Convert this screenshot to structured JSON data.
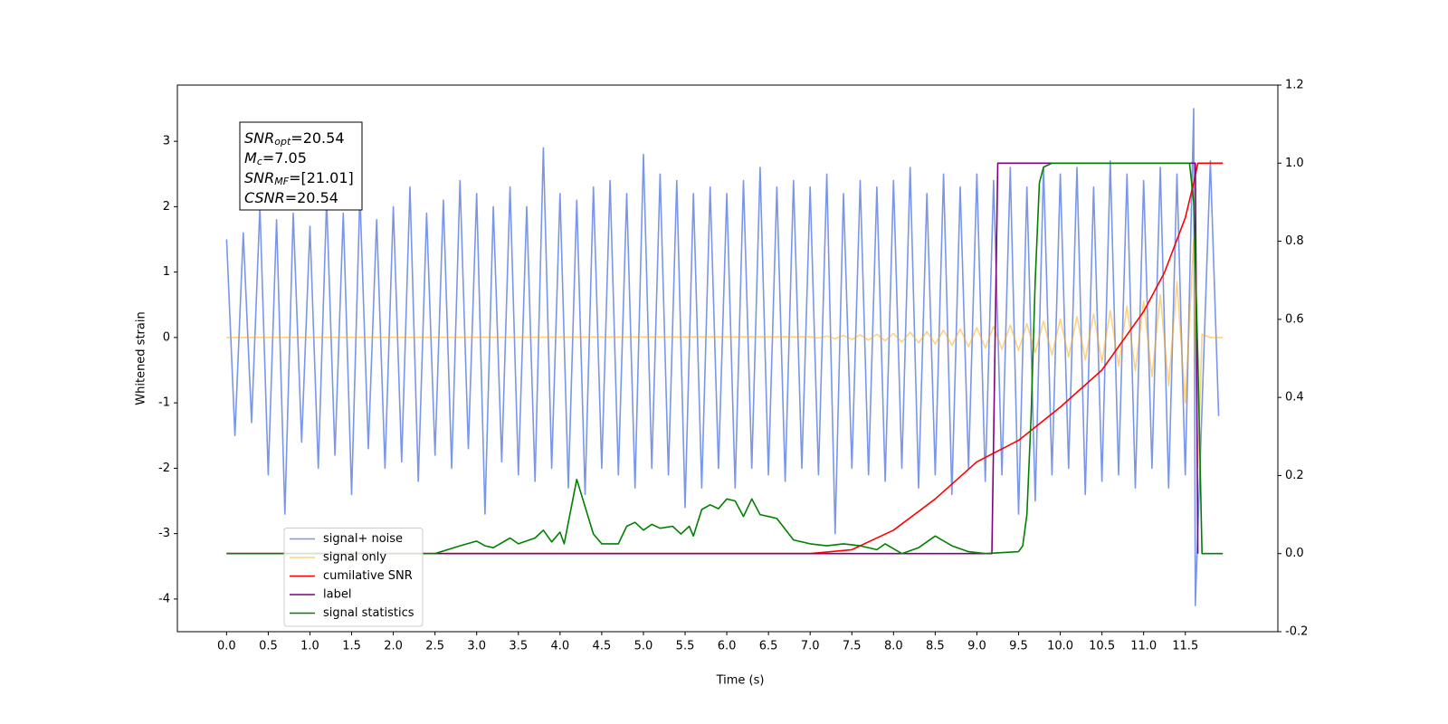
{
  "chart_data": {
    "type": "line",
    "xlabel": "Time (s)",
    "ylabel": "Whitened strain",
    "xlim": [
      -0.59,
      12.61
    ],
    "ylim": [
      -4.5,
      3.86
    ],
    "y2lim": [
      -0.2,
      1.2
    ],
    "xticks": [
      {
        "value": 0,
        "label": "0.0"
      },
      {
        "value": 0.5,
        "label": "0.5"
      },
      {
        "value": 1,
        "label": "1.0"
      },
      {
        "value": 1.5,
        "label": "1.5"
      },
      {
        "value": 2,
        "label": "2.0"
      },
      {
        "value": 2.5,
        "label": "2.5"
      },
      {
        "value": 3,
        "label": "3.0"
      },
      {
        "value": 3.5,
        "label": "3.5"
      },
      {
        "value": 4,
        "label": "4.0"
      },
      {
        "value": 4.5,
        "label": "4.5"
      },
      {
        "value": 5,
        "label": "5.0"
      },
      {
        "value": 5.5,
        "label": "5.5"
      },
      {
        "value": 6,
        "label": "6.0"
      },
      {
        "value": 6.5,
        "label": "6.5"
      },
      {
        "value": 7,
        "label": "7.0"
      },
      {
        "value": 7.5,
        "label": "7.5"
      },
      {
        "value": 8,
        "label": "8.0"
      },
      {
        "value": 8.5,
        "label": "8.5"
      },
      {
        "value": 9,
        "label": "9.0"
      },
      {
        "value": 9.5,
        "label": "9.5"
      },
      {
        "value": 10,
        "label": "10.0"
      },
      {
        "value": 10.5,
        "label": "10.5"
      },
      {
        "value": 11,
        "label": "11.0"
      },
      {
        "value": 11.5,
        "label": "11.5"
      }
    ],
    "yticks": [
      -4,
      -3,
      -2,
      -1,
      0,
      1,
      2,
      3
    ],
    "y2ticks": [
      -0.2,
      {
        "value": 0,
        "label": "0.0"
      },
      0.2,
      0.4,
      0.6,
      0.8,
      {
        "value": 1,
        "label": "1.0"
      },
      1.2
    ],
    "legend": "lower left",
    "annotation": [
      {
        "main": "SNR",
        "sub": "opt",
        "rest": "=20.54"
      },
      {
        "main": "M",
        "sub": "c",
        "rest": "=7.05"
      },
      {
        "main": "SNR",
        "sub": "MF",
        "rest": "=[21.01]"
      },
      {
        "main": "CSNR",
        "sub": "",
        "rest": "=20.54"
      }
    ],
    "series": [
      {
        "name": "signal+ noise",
        "color": "#4169e1",
        "alpha": 0.7,
        "axis": "y",
        "x": [
          0,
          0.1,
          0.2,
          0.3,
          0.4,
          0.5,
          0.6,
          0.7,
          0.8,
          0.9,
          1,
          1.1,
          1.2,
          1.3,
          1.4,
          1.5,
          1.6,
          1.7,
          1.8,
          1.9,
          2,
          2.1,
          2.2,
          2.3,
          2.4,
          2.5,
          2.6,
          2.7,
          2.8,
          2.9,
          3,
          3.1,
          3.2,
          3.3,
          3.4,
          3.5,
          3.6,
          3.7,
          3.8,
          3.9,
          4,
          4.1,
          4.2,
          4.3,
          4.4,
          4.5,
          4.6,
          4.7,
          4.8,
          4.9,
          5,
          5.1,
          5.2,
          5.3,
          5.4,
          5.5,
          5.6,
          5.7,
          5.8,
          5.9,
          6,
          6.1,
          6.2,
          6.3,
          6.4,
          6.5,
          6.6,
          6.7,
          6.8,
          6.9,
          7,
          7.1,
          7.2,
          7.3,
          7.4,
          7.5,
          7.6,
          7.7,
          7.8,
          7.9,
          8,
          8.1,
          8.2,
          8.3,
          8.4,
          8.5,
          8.6,
          8.7,
          8.8,
          8.9,
          9,
          9.1,
          9.2,
          9.3,
          9.4,
          9.5,
          9.6,
          9.7,
          9.8,
          9.9,
          10,
          10.1,
          10.2,
          10.3,
          10.4,
          10.5,
          10.6,
          10.7,
          10.8,
          10.9,
          11,
          11.1,
          11.2,
          11.3,
          11.4,
          11.5,
          11.6,
          11.62,
          11.8,
          11.9
        ],
        "values": [
          1.5,
          -1.5,
          1.6,
          -1.3,
          2.0,
          -2.1,
          1.8,
          -2.7,
          1.9,
          -1.6,
          1.7,
          -2.0,
          2.1,
          -1.8,
          1.9,
          -2.4,
          2.2,
          -1.7,
          1.8,
          -2.0,
          2.0,
          -1.9,
          2.3,
          -2.2,
          1.9,
          -1.8,
          2.1,
          -2.0,
          2.4,
          -1.7,
          2.2,
          -2.7,
          2.0,
          -1.9,
          2.3,
          -2.1,
          2.0,
          -2.2,
          2.9,
          -2.0,
          2.2,
          -2.3,
          2.1,
          -2.4,
          2.3,
          -2.0,
          2.4,
          -2.1,
          2.2,
          -2.3,
          2.8,
          -2.0,
          2.5,
          -2.1,
          2.4,
          -2.6,
          2.2,
          -2.3,
          2.3,
          -2.0,
          2.2,
          -2.3,
          2.4,
          -2.0,
          2.6,
          -2.1,
          2.3,
          -2.2,
          2.4,
          -2.0,
          2.3,
          -2.1,
          2.5,
          -3.0,
          2.2,
          -2.0,
          2.4,
          -2.1,
          2.3,
          -2.2,
          2.4,
          -2.0,
          2.6,
          -2.3,
          2.2,
          -2.1,
          2.5,
          -2.4,
          2.3,
          -2.0,
          2.5,
          -2.2,
          2.4,
          -2.1,
          2.6,
          -2.7,
          2.3,
          -2.5,
          2.6,
          -2.1,
          2.5,
          -2.0,
          2.6,
          -2.4,
          2.3,
          -2.2,
          2.7,
          -2.1,
          2.5,
          -2.3,
          2.4,
          -2.0,
          2.6,
          -2.3,
          2.5,
          -2.1,
          3.5,
          -4.1,
          2.7,
          -1.2
        ]
      },
      {
        "name": "signal only",
        "color": "#ffa500",
        "alpha": 0.5,
        "axis": "y",
        "x": [
          0,
          7.0,
          7.1,
          7.2,
          7.3,
          7.4,
          7.5,
          7.6,
          7.7,
          7.8,
          7.9,
          8.0,
          8.1,
          8.2,
          8.3,
          8.4,
          8.5,
          8.6,
          8.7,
          8.8,
          8.9,
          9.0,
          9.1,
          9.2,
          9.3,
          9.4,
          9.5,
          9.6,
          9.7,
          9.8,
          9.9,
          10.0,
          10.1,
          10.2,
          10.3,
          10.4,
          10.5,
          10.6,
          10.7,
          10.8,
          10.9,
          11.0,
          11.1,
          11.2,
          11.3,
          11.4,
          11.5,
          11.6,
          11.65,
          11.7,
          11.8,
          11.95
        ],
        "values": [
          0,
          0.01,
          -0.01,
          0.02,
          -0.02,
          0.03,
          -0.03,
          0.04,
          -0.04,
          0.05,
          -0.05,
          0.06,
          -0.07,
          0.08,
          -0.08,
          0.09,
          -0.1,
          0.11,
          -0.12,
          0.13,
          -0.14,
          0.15,
          -0.16,
          0.17,
          -0.18,
          0.19,
          -0.2,
          0.21,
          -0.23,
          0.25,
          -0.27,
          0.28,
          -0.3,
          0.32,
          -0.34,
          0.36,
          -0.38,
          0.41,
          -0.44,
          0.48,
          -0.51,
          0.55,
          -0.6,
          0.65,
          -0.74,
          0.85,
          -1.0,
          1.5,
          -2.0,
          0.05,
          0,
          0
        ]
      },
      {
        "name": "cumilative SNR",
        "color": "#ff0000",
        "alpha": 1,
        "axis": "y2",
        "x": [
          0,
          7.0,
          7.5,
          8.0,
          8.5,
          9.0,
          9.5,
          10.0,
          10.5,
          11.0,
          11.25,
          11.5,
          11.6,
          11.65,
          11.95
        ],
        "values": [
          0,
          0,
          0.01,
          0.06,
          0.14,
          0.235,
          0.29,
          0.375,
          0.47,
          0.62,
          0.72,
          0.86,
          0.95,
          1.0,
          1.0
        ]
      },
      {
        "name": "label",
        "color": "#800080",
        "alpha": 1,
        "axis": "y2",
        "x": [
          0,
          9.18,
          9.25,
          11.62,
          11.65
        ],
        "values": [
          0,
          0,
          1,
          1,
          0
        ]
      },
      {
        "name": "signal statistics",
        "color": "#008000",
        "alpha": 1,
        "axis": "y2",
        "x": [
          0,
          2.5,
          2.8,
          3.0,
          3.1,
          3.2,
          3.4,
          3.5,
          3.7,
          3.8,
          3.9,
          4.0,
          4.05,
          4.1,
          4.2,
          4.3,
          4.4,
          4.5,
          4.7,
          4.8,
          4.9,
          5.0,
          5.1,
          5.2,
          5.35,
          5.45,
          5.55,
          5.6,
          5.7,
          5.8,
          5.9,
          6.0,
          6.1,
          6.2,
          6.3,
          6.4,
          6.5,
          6.6,
          6.8,
          7.0,
          7.2,
          7.4,
          7.6,
          7.8,
          7.9,
          8.1,
          8.3,
          8.5,
          8.7,
          8.9,
          9.1,
          9.5,
          9.55,
          9.6,
          9.65,
          9.7,
          9.75,
          9.8,
          9.9,
          11.55,
          11.6,
          11.65,
          11.7,
          11.95
        ],
        "values": [
          0,
          0,
          0.02,
          0.032,
          0.02,
          0.015,
          0.04,
          0.025,
          0.04,
          0.06,
          0.03,
          0.055,
          0.025,
          0.08,
          0.19,
          0.12,
          0.05,
          0.025,
          0.025,
          0.07,
          0.08,
          0.06,
          0.075,
          0.065,
          0.07,
          0.05,
          0.07,
          0.045,
          0.113,
          0.125,
          0.115,
          0.14,
          0.135,
          0.095,
          0.14,
          0.1,
          0.095,
          0.09,
          0.035,
          0.025,
          0.02,
          0.025,
          0.02,
          0.01,
          0.025,
          0,
          0.015,
          0.045,
          0.02,
          0.005,
          0,
          0.005,
          0.02,
          0.1,
          0.35,
          0.7,
          0.95,
          0.99,
          1.0,
          1.0,
          0.9,
          0.5,
          0,
          0
        ]
      }
    ]
  }
}
